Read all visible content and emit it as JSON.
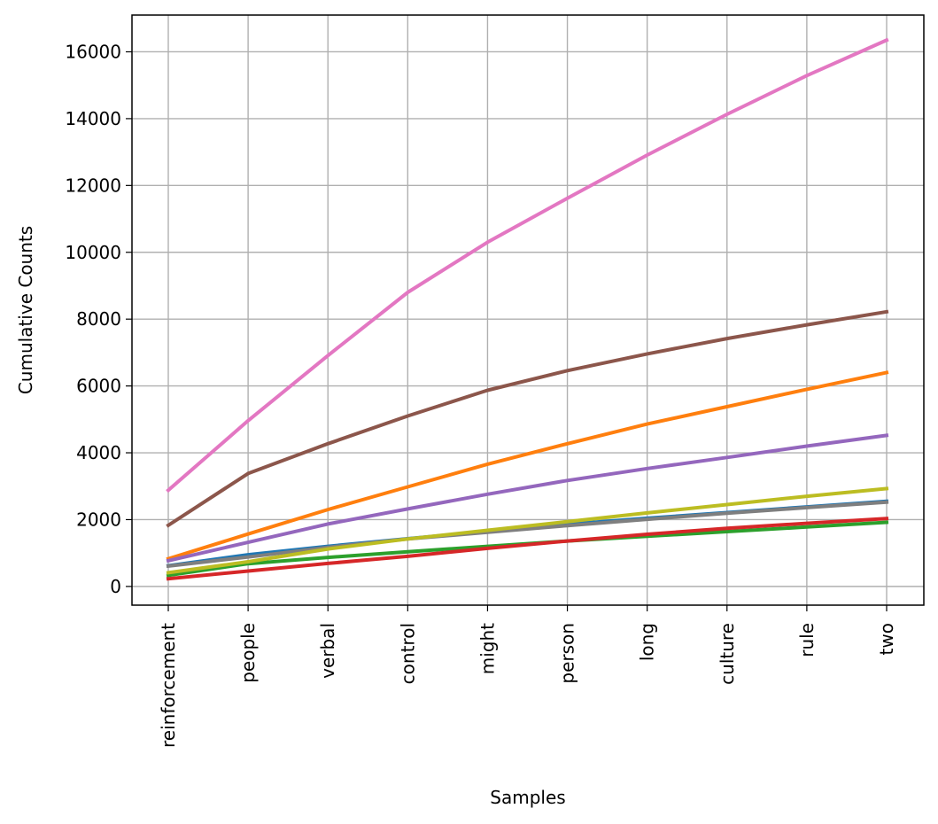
{
  "chart_data": {
    "type": "line",
    "title": "",
    "xlabel": "Samples",
    "ylabel": "Cumulative Counts",
    "categories": [
      "reinforcement",
      "people",
      "verbal",
      "control",
      "might",
      "person",
      "long",
      "culture",
      "rule",
      "two"
    ],
    "ylim": [
      -560,
      17100
    ],
    "yticks": [
      0,
      2000,
      4000,
      6000,
      8000,
      10000,
      12000,
      14000,
      16000
    ],
    "grid": true,
    "legend": "none",
    "series": [
      {
        "color": "#1f77b4",
        "values": [
          620,
          950,
          1200,
          1430,
          1650,
          1860,
          2040,
          2210,
          2380,
          2550
        ]
      },
      {
        "color": "#ff7f0e",
        "values": [
          830,
          1570,
          2300,
          2980,
          3660,
          4270,
          4860,
          5380,
          5900,
          6400
        ]
      },
      {
        "color": "#2ca02c",
        "values": [
          330,
          680,
          870,
          1040,
          1200,
          1360,
          1500,
          1640,
          1780,
          1920
        ]
      },
      {
        "color": "#d62728",
        "values": [
          230,
          460,
          690,
          900,
          1140,
          1360,
          1560,
          1740,
          1890,
          2030
        ]
      },
      {
        "color": "#9467bd",
        "values": [
          770,
          1320,
          1870,
          2320,
          2760,
          3170,
          3530,
          3860,
          4200,
          4520
        ]
      },
      {
        "color": "#8c564b",
        "values": [
          1830,
          3380,
          4270,
          5100,
          5870,
          6460,
          6960,
          7420,
          7830,
          8220
        ]
      },
      {
        "color": "#e377c2",
        "values": [
          2880,
          4960,
          6910,
          8800,
          10300,
          11620,
          12910,
          14130,
          15290,
          16350
        ]
      },
      {
        "color": "#7f7f7f",
        "values": [
          610,
          880,
          1170,
          1420,
          1620,
          1820,
          2010,
          2190,
          2360,
          2520
        ]
      },
      {
        "color": "#bcbd22",
        "values": [
          410,
          740,
          1120,
          1420,
          1680,
          1940,
          2200,
          2450,
          2700,
          2930
        ]
      }
    ]
  }
}
